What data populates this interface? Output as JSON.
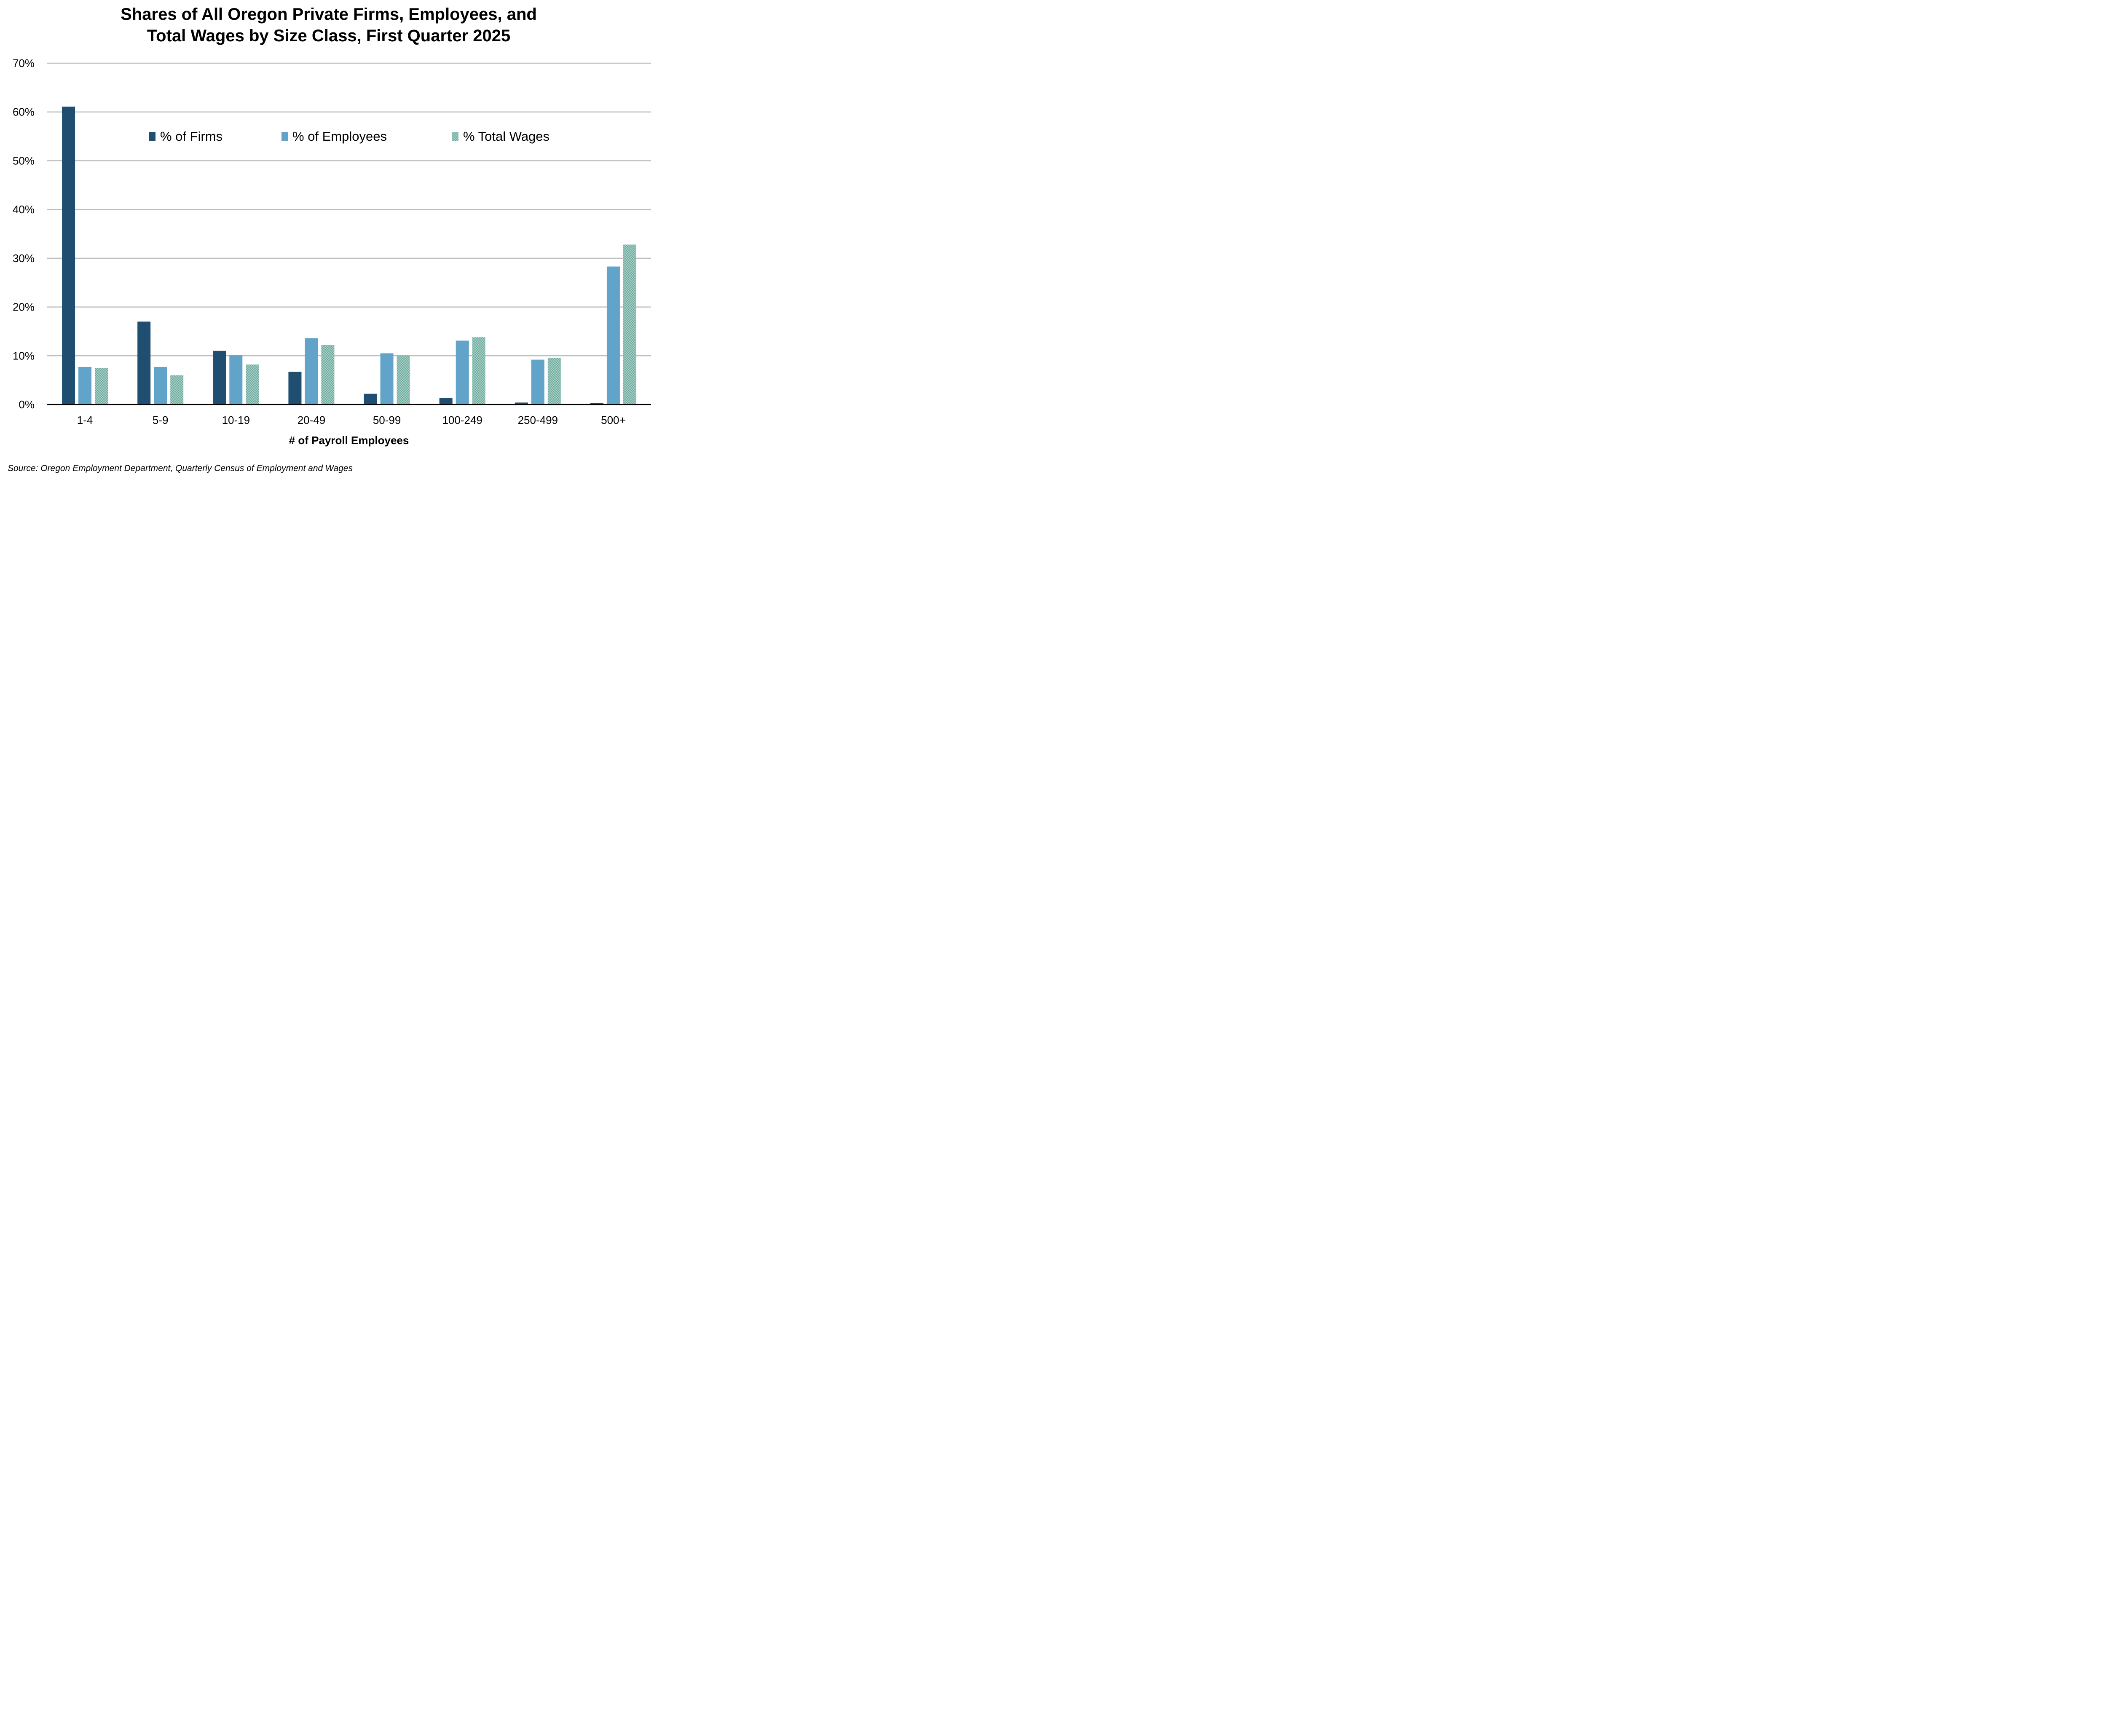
{
  "chart_data": {
    "type": "bar",
    "title_lines": [
      "Shares of All Oregon Private Firms, Employees, and",
      "Total Wages by Size Class, First Quarter 2025"
    ],
    "xlabel": "# of Payroll Employees",
    "ylabel": "",
    "ylim": [
      0,
      70
    ],
    "yticks": [
      "0%",
      "10%",
      "20%",
      "30%",
      "40%",
      "50%",
      "60%",
      "70%"
    ],
    "grid": true,
    "legend_position": "top-center",
    "categories": [
      "1-4",
      "5-9",
      "10-19",
      "20-49",
      "50-99",
      "100-249",
      "250-499",
      "500+"
    ],
    "series": [
      {
        "name": "% of Firms",
        "color": "#1f4e70",
        "values": [
          61.1,
          17.0,
          11.0,
          6.7,
          2.2,
          1.3,
          0.4,
          0.3
        ]
      },
      {
        "name": "% of Employees",
        "color": "#62a3c9",
        "values": [
          7.7,
          7.7,
          10.1,
          13.6,
          10.5,
          13.1,
          9.2,
          28.3
        ]
      },
      {
        "name": "% Total Wages",
        "color": "#8cbfb3",
        "pattern": "dotted",
        "values": [
          7.5,
          6.0,
          8.2,
          12.2,
          10.1,
          13.8,
          9.6,
          32.8
        ]
      }
    ],
    "source": "Source: Oregon Employment Department, Quarterly Census of Employment and Wages"
  }
}
